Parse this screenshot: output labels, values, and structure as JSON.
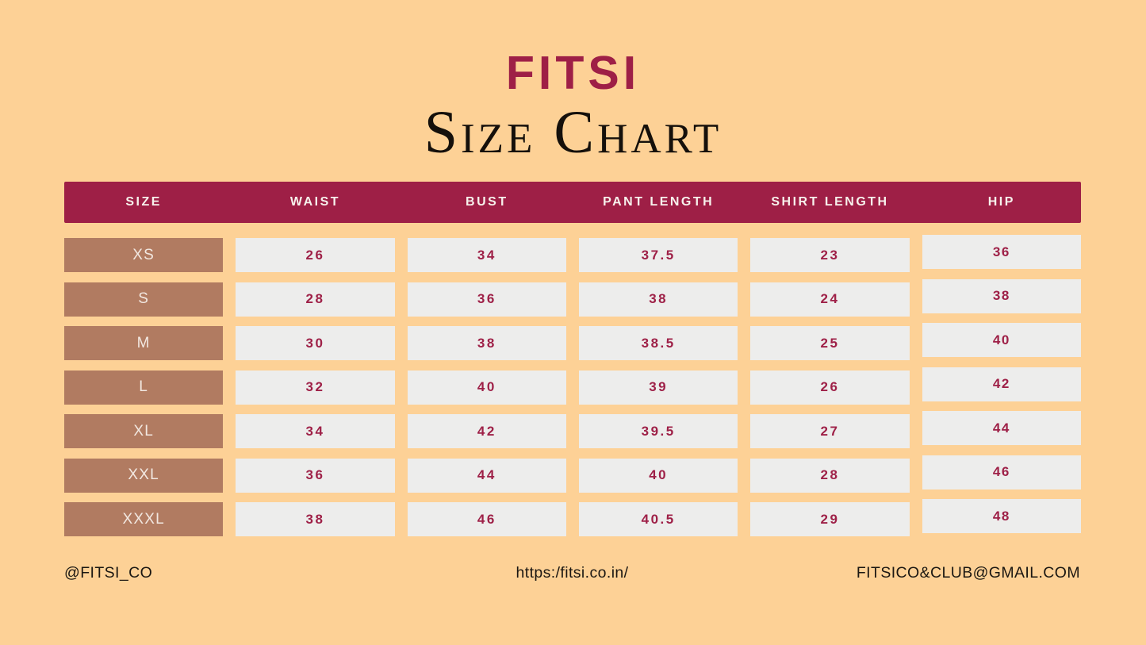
{
  "page": {
    "background_color": "#FDD196",
    "accent_maroon": "#9E1F46",
    "size_cell_brown": "#B17B61",
    "value_cell_gray": "#EDEDEC"
  },
  "header": {
    "brand": "FITSI",
    "title": "Size Chart"
  },
  "table": {
    "columns": [
      "SIZE",
      "WAIST",
      "BUST",
      "PANT LENGTH",
      "SHIRT LENGTH",
      "HIP"
    ],
    "rows": [
      {
        "size": "XS",
        "values": [
          "26",
          "34",
          "37.5",
          "23",
          "36"
        ]
      },
      {
        "size": "S",
        "values": [
          "28",
          "36",
          "38",
          "24",
          "38"
        ]
      },
      {
        "size": "M",
        "values": [
          "30",
          "38",
          "38.5",
          "25",
          "40"
        ]
      },
      {
        "size": "L",
        "values": [
          "32",
          "40",
          "39",
          "26",
          "42"
        ]
      },
      {
        "size": "XL",
        "values": [
          "34",
          "42",
          "39.5",
          "27",
          "44"
        ]
      },
      {
        "size": "XXL",
        "values": [
          "36",
          "44",
          "40",
          "28",
          "46"
        ]
      },
      {
        "size": "XXXL",
        "values": [
          "38",
          "46",
          "40.5",
          "29",
          "48"
        ]
      }
    ]
  },
  "footer": {
    "social_handle": "@FITSI_CO",
    "website": "https:/fitsi.co.in/",
    "email": "FITSICO&CLUB@GMAIL.COM"
  }
}
